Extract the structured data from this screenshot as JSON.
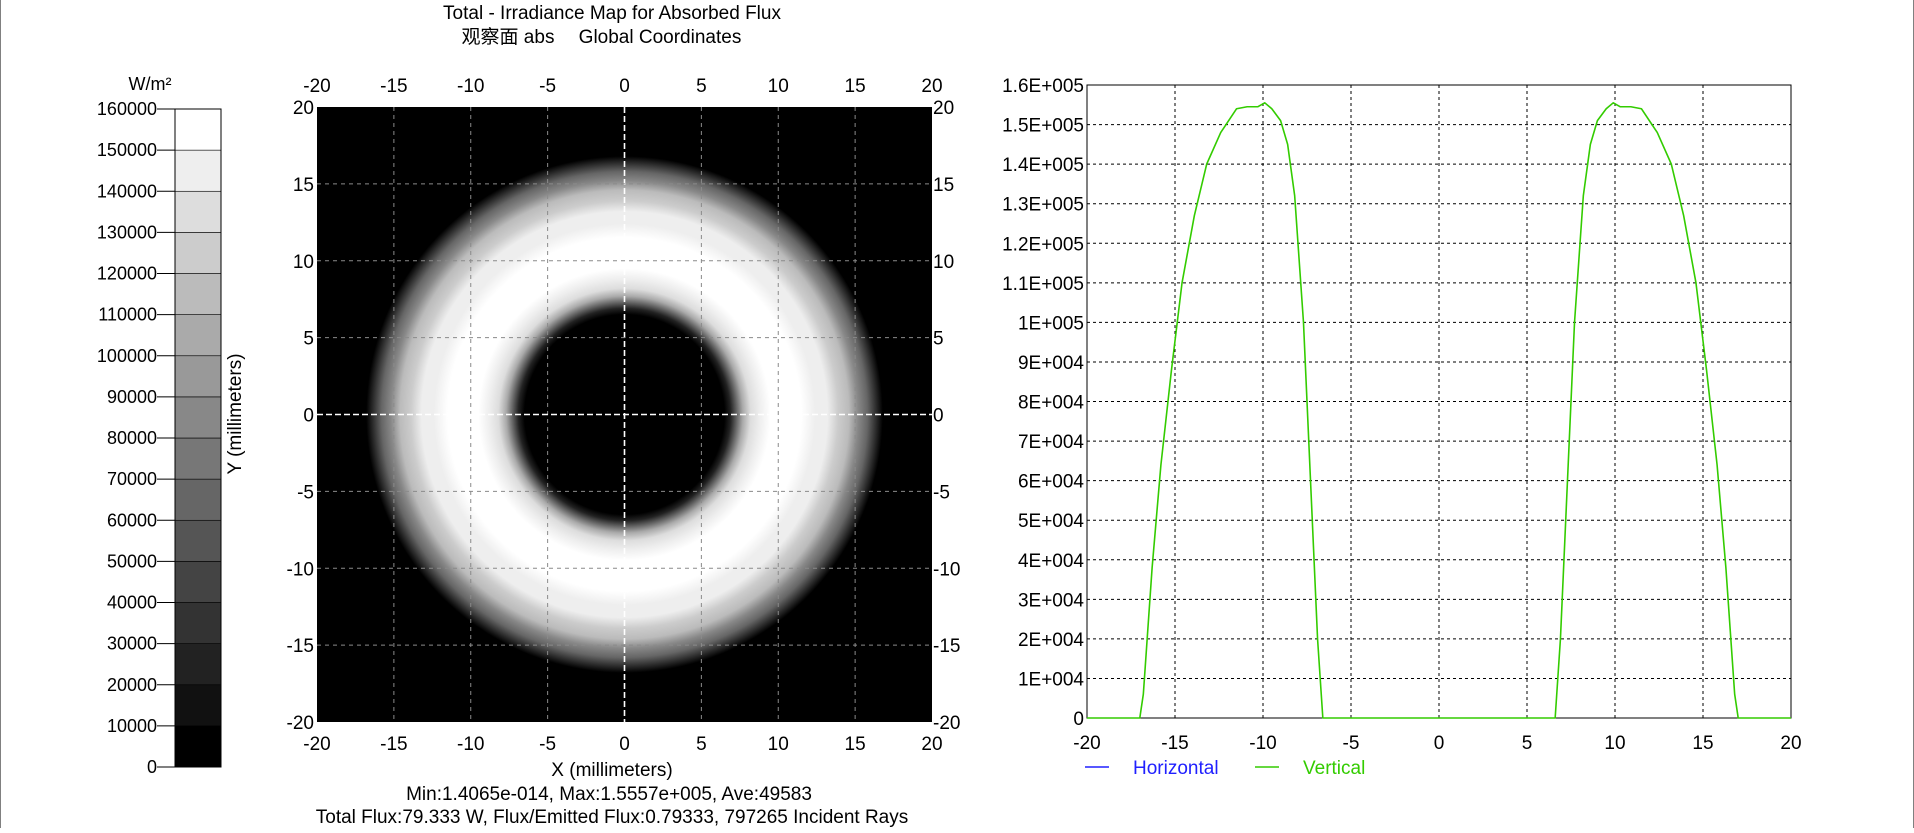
{
  "title": "Total - Irradiance Map for Absorbed Flux",
  "subtitle_detector": "观察面 abs",
  "subtitle_coords": "Global Coordinates",
  "colorbar": {
    "unit": "W/m²",
    "ticks": [
      "160000",
      "150000",
      "140000",
      "130000",
      "120000",
      "110000",
      "100000",
      "90000",
      "80000",
      "70000",
      "60000",
      "50000",
      "40000",
      "30000",
      "20000",
      "10000",
      "0"
    ]
  },
  "map": {
    "xlabel": "X (millimeters)",
    "ylabel": "Y (millimeters)",
    "ticks": [
      "-20",
      "-15",
      "-10",
      "-5",
      "0",
      "5",
      "10",
      "15",
      "20"
    ],
    "stats_line": "Min:1.4065e-014, Max:1.5557e+005, Ave:49583",
    "flux_line": "Total Flux:79.333 W, Flux/Emitted Flux:0.79333, 797265 Incident Rays"
  },
  "chart_data": [
    {
      "type": "heatmap",
      "title": "Total - Irradiance Map for Absorbed Flux",
      "xlabel": "X (millimeters)",
      "ylabel": "Y (millimeters)",
      "xlim": [
        -20,
        20
      ],
      "ylim": [
        -20,
        20
      ],
      "colorbar_unit": "W/m²",
      "colorbar_range": [
        0,
        160000
      ],
      "colormap": "grayscale",
      "radial_profile": {
        "r_mm": [
          0,
          6.5,
          6.9,
          7.3,
          7.7,
          8.2,
          8.8,
          9.5,
          10.2,
          11.5,
          12.4,
          13.2,
          13.9,
          14.6,
          15.2,
          15.8,
          16.3,
          16.8,
          20
        ],
        "irradiance": [
          0,
          0,
          20000,
          60000,
          100000,
          130000,
          148000,
          153000,
          155000,
          154000,
          148000,
          140000,
          127000,
          110000,
          88000,
          64000,
          38000,
          6000,
          0
        ]
      },
      "stats": {
        "min": 1.4065e-14,
        "max": 155570,
        "ave": 49583
      },
      "total_flux_W": 79.333,
      "flux_ratio": 0.79333,
      "incident_rays": 797265
    },
    {
      "type": "line",
      "xlim": [
        -20,
        20
      ],
      "ylim": [
        0,
        160000
      ],
      "x_ticks": [
        "-20",
        "-15",
        "-10",
        "-5",
        "0",
        "5",
        "10",
        "15",
        "20"
      ],
      "y_ticks": [
        "0",
        "1E+004",
        "2E+004",
        "3E+004",
        "4E+004",
        "5E+004",
        "6E+004",
        "7E+004",
        "8E+004",
        "9E+004",
        "1E+005",
        "1.1E+005",
        "1.2E+005",
        "1.3E+005",
        "1.4E+005",
        "1.5E+005",
        "1.6E+005"
      ],
      "grid": true,
      "legend_position": "bottom-left",
      "series": [
        {
          "name": "Horizontal",
          "color": "#2020ff",
          "x": [],
          "y": []
        },
        {
          "name": "Vertical",
          "color": "#33cc00",
          "x": [
            -20,
            -17.0,
            -16.8,
            -16.3,
            -15.8,
            -15.2,
            -14.6,
            -13.9,
            -13.2,
            -12.4,
            -11.5,
            -10.9,
            -10.3,
            -9.9,
            -9.5,
            -9.0,
            -8.6,
            -8.2,
            -7.7,
            -7.3,
            -6.9,
            -6.6,
            6.6,
            6.9,
            7.3,
            7.7,
            8.2,
            8.6,
            9.0,
            9.5,
            9.9,
            10.3,
            10.9,
            11.5,
            12.4,
            13.2,
            13.9,
            14.6,
            15.2,
            15.8,
            16.3,
            16.8,
            17.0,
            20
          ],
          "y": [
            0,
            0,
            6000,
            38000,
            64000,
            88000,
            110000,
            127000,
            140000,
            148000,
            154000,
            154500,
            154500,
            155500,
            154000,
            151000,
            145000,
            132000,
            100000,
            60000,
            20000,
            0,
            0,
            20000,
            60000,
            100000,
            132000,
            145000,
            151000,
            154000,
            155500,
            154500,
            154500,
            154000,
            148000,
            140000,
            127000,
            110000,
            88000,
            64000,
            38000,
            6000,
            0,
            0
          ]
        }
      ]
    }
  ]
}
